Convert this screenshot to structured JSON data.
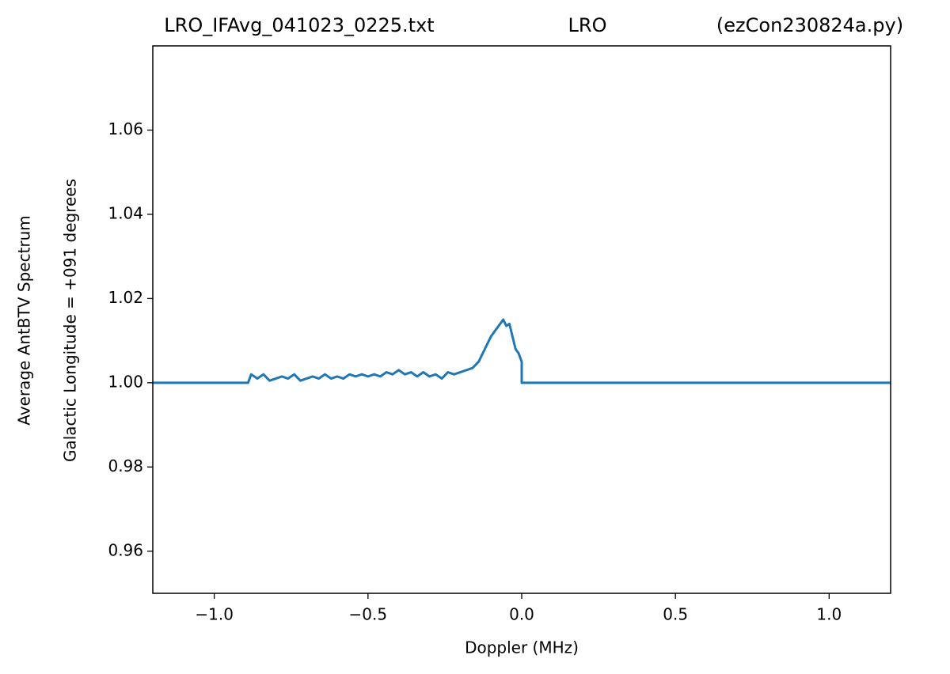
{
  "chart_data": {
    "type": "line",
    "titles": [
      "LRO_IFAvg_041023_0225.txt",
      "LRO",
      "(ezCon230824a.py)"
    ],
    "ylabel": [
      "Average AntBTV Spectrum",
      "Galactic Longitude = +091 degrees"
    ],
    "xlabel": "Doppler (MHz)",
    "xlim": [
      -1.2,
      1.2
    ],
    "ylim": [
      0.95,
      1.08
    ],
    "xticks": [
      {
        "value": -1.0,
        "label": "−1.0"
      },
      {
        "value": -0.5,
        "label": "−0.5"
      },
      {
        "value": 0.0,
        "label": "0.0"
      },
      {
        "value": 0.5,
        "label": "0.5"
      },
      {
        "value": 1.0,
        "label": "1.0"
      }
    ],
    "yticks": [
      0.96,
      0.98,
      {
        "value": 1.0,
        "label": "1.00"
      },
      1.02,
      1.04,
      1.06
    ],
    "series": [
      {
        "color": "#1f77b4",
        "x": [
          -1.2,
          -0.89,
          -0.88,
          -0.86,
          -0.84,
          -0.82,
          -0.8,
          -0.78,
          -0.76,
          -0.74,
          -0.72,
          -0.7,
          -0.68,
          -0.66,
          -0.64,
          -0.62,
          -0.6,
          -0.58,
          -0.56,
          -0.54,
          -0.52,
          -0.5,
          -0.48,
          -0.46,
          -0.44,
          -0.42,
          -0.4,
          -0.38,
          -0.36,
          -0.34,
          -0.32,
          -0.3,
          -0.28,
          -0.26,
          -0.24,
          -0.22,
          -0.2,
          -0.18,
          -0.16,
          -0.14,
          -0.12,
          -0.1,
          -0.08,
          -0.06,
          -0.05,
          -0.04,
          -0.03,
          -0.02,
          -0.01,
          0.0,
          0.0,
          1.2
        ],
        "values": [
          1.0,
          1.0,
          1.002,
          1.001,
          1.002,
          1.0005,
          1.001,
          1.0015,
          1.001,
          1.002,
          1.0005,
          1.001,
          1.0015,
          1.001,
          1.002,
          1.001,
          1.0015,
          1.001,
          1.002,
          1.0015,
          1.002,
          1.0015,
          1.002,
          1.0015,
          1.0025,
          1.002,
          1.003,
          1.002,
          1.0025,
          1.0015,
          1.0025,
          1.0015,
          1.002,
          1.001,
          1.0025,
          1.002,
          1.0025,
          1.003,
          1.0035,
          1.005,
          1.008,
          1.011,
          1.013,
          1.015,
          1.0135,
          1.014,
          1.011,
          1.008,
          1.007,
          1.005,
          1.0,
          1.0
        ]
      }
    ]
  }
}
